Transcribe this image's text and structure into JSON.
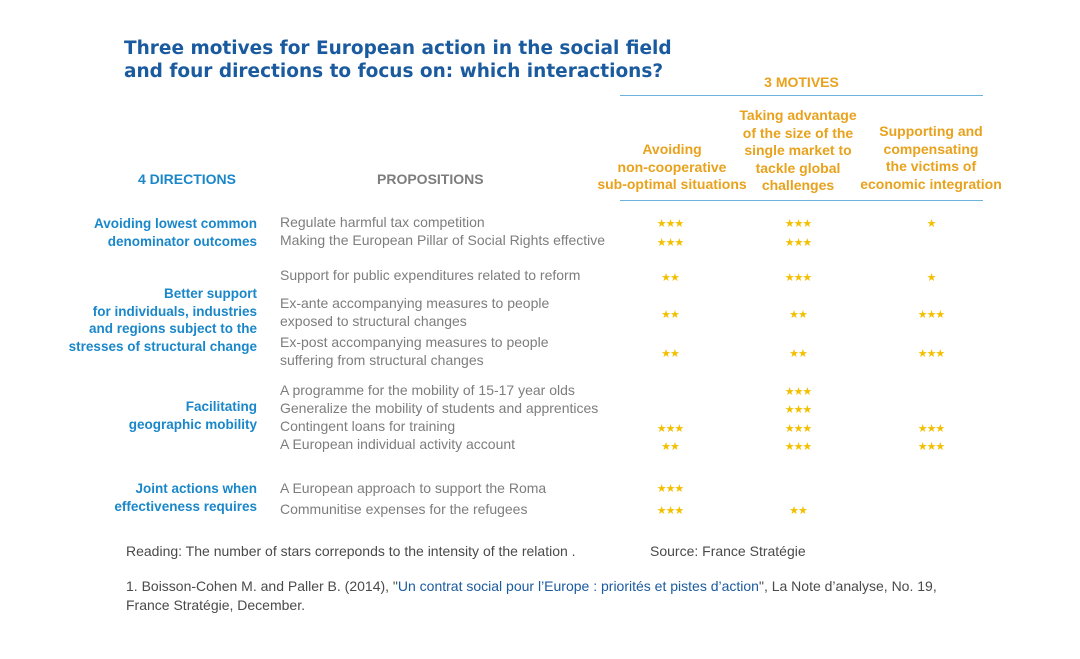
{
  "title": {
    "line1": "Three motives for European action in the social field",
    "line2": "and four directions to focus on: which interactions?"
  },
  "headers": {
    "motives": "3 MOTIVES",
    "directions": "4 DIRECTIONS",
    "propositions": "PROPOSITIONS",
    "motive1": [
      "Avoiding",
      "non-cooperative",
      "sub-optimal situations"
    ],
    "motive2": [
      "Taking advantage",
      "of the size of the",
      "single market to",
      "tackle global",
      "challenges"
    ],
    "motive3": [
      "Supporting and",
      "compensating",
      "the victims of",
      "economic integration"
    ]
  },
  "directions": [
    [
      "Avoiding lowest common",
      "denominator outcomes"
    ],
    [
      "Better support",
      "for individuals, industries",
      "and regions subject to the",
      "stresses of structural change"
    ],
    [
      "Facilitating",
      "geographic mobility"
    ],
    [
      "Joint actions when",
      "effectiveness requires"
    ]
  ],
  "rows": [
    {
      "text": [
        "Regulate harmful tax competition"
      ],
      "m1": "★★★",
      "m2": "★★★",
      "m3": "★"
    },
    {
      "text": [
        "Making the European Pillar of Social Rights effective"
      ],
      "m1": "★★★",
      "m2": "★★★",
      "m3": ""
    },
    {
      "text": [
        "Support for public expenditures related to reform"
      ],
      "m1": "★★",
      "m2": "★★★",
      "m3": "★"
    },
    {
      "text": [
        "Ex-ante accompanying measures to people",
        "exposed to structural changes"
      ],
      "m1": "★★",
      "m2": "★★",
      "m3": "★★★"
    },
    {
      "text": [
        "Ex-post accompanying measures to people",
        "suffering from structural changes"
      ],
      "m1": "★★",
      "m2": "★★",
      "m3": "★★★"
    },
    {
      "text": [
        "A programme for the mobility of 15-17 year olds"
      ],
      "m1": "",
      "m2": "★★★",
      "m3": ""
    },
    {
      "text": [
        "Generalize the mobility of students and apprentices"
      ],
      "m1": "",
      "m2": "★★★",
      "m3": ""
    },
    {
      "text": [
        "Contingent loans for training"
      ],
      "m1": "★★★",
      "m2": "★★★",
      "m3": "★★★"
    },
    {
      "text": [
        "A European individual activity account"
      ],
      "m1": "★★",
      "m2": "★★★",
      "m3": "★★★"
    },
    {
      "text": [
        "A European approach to support the Roma"
      ],
      "m1": "★★★",
      "m2": "",
      "m3": ""
    },
    {
      "text": [
        "Communitise expenses for the refugees"
      ],
      "m1": "★★★",
      "m2": "★★",
      "m3": ""
    }
  ],
  "reading": "Reading: The number of stars correponds to the intensity of the relation .",
  "source": "Source: France Stratégie",
  "footnote": {
    "prefix": "1. Boisson-Cohen M. and Paller B. (2014), \"",
    "link": "Un contrat social pour l’Europe : priorités et pistes d’action",
    "suffix": "\", La Note d’analyse, No. 19,",
    "line2": "France Stratégie, December."
  },
  "colors": {
    "title": "#1a5a9e",
    "accent_blue": "#1a87c9",
    "orange": "#e8a21c",
    "star": "#f2c000",
    "rule": "#69b3dc"
  }
}
